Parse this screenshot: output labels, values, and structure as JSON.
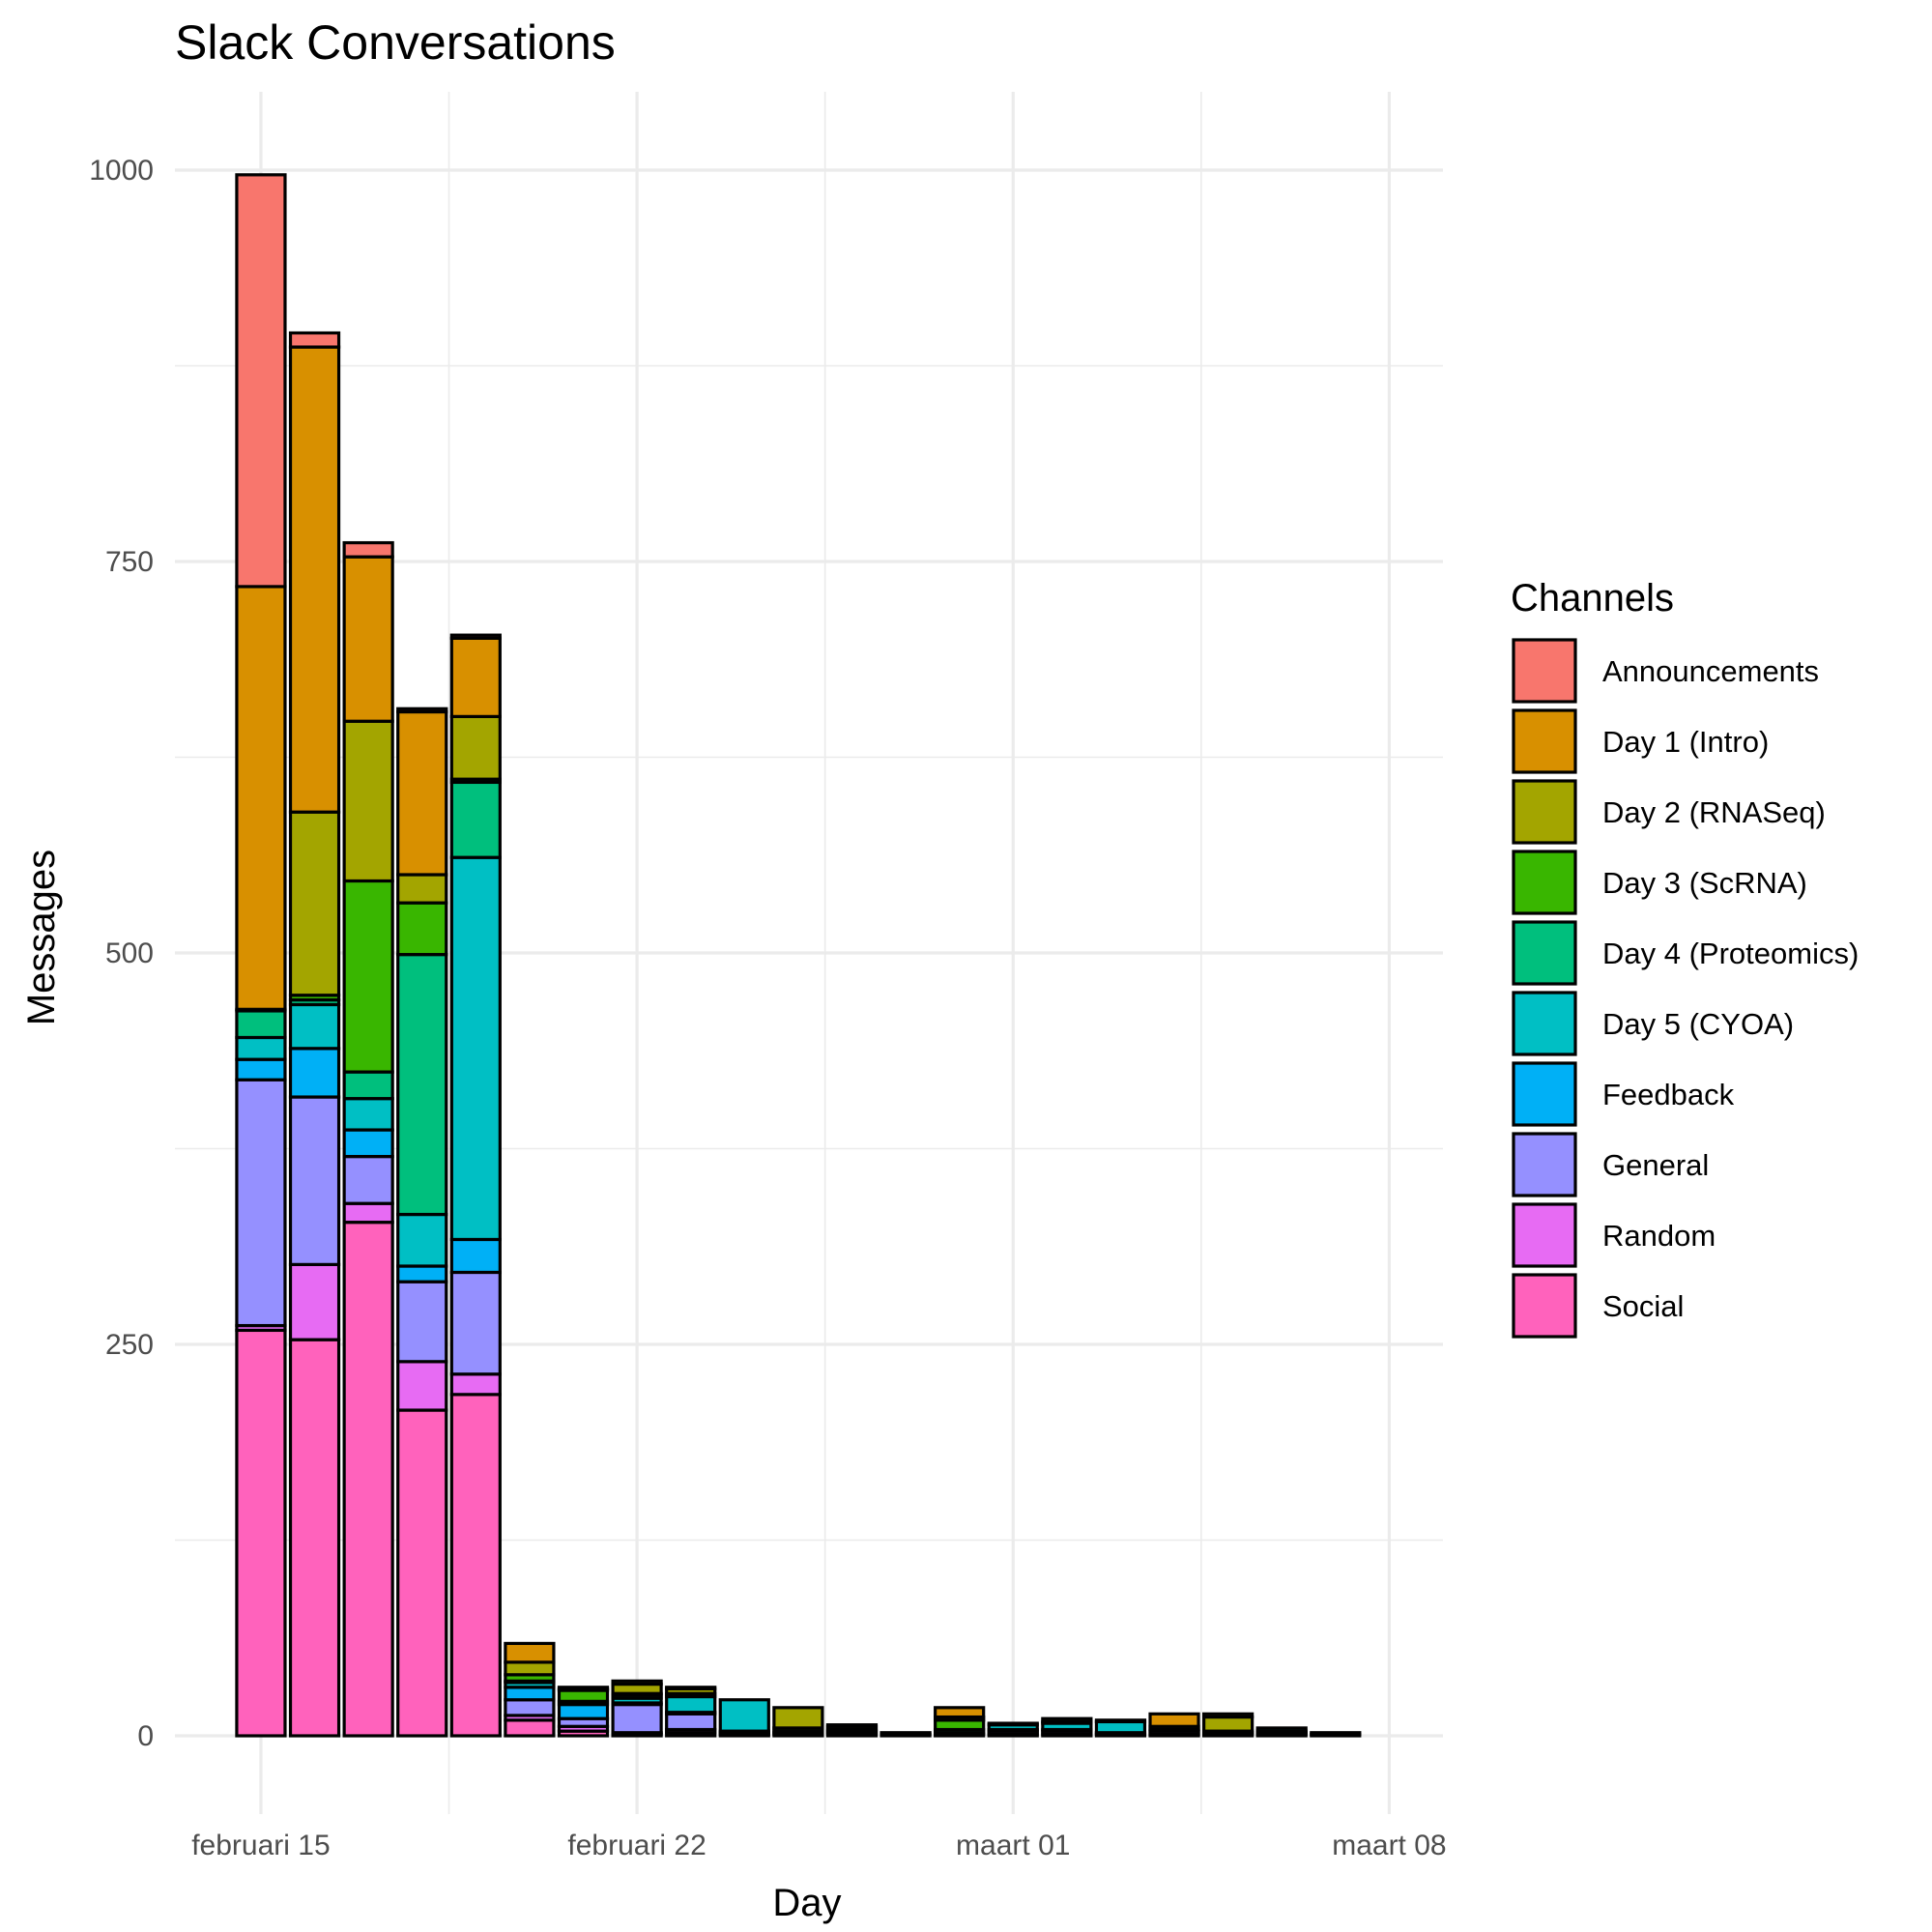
{
  "chart_data": {
    "type": "bar",
    "stacked": true,
    "title": "Slack Conversations",
    "xlabel": "Day",
    "ylabel": "Messages",
    "ylim": [
      -50,
      1050
    ],
    "yticks": [
      0,
      250,
      500,
      750,
      1000
    ],
    "ytick_labels": [
      "0",
      "250",
      "500",
      "750",
      "1000"
    ],
    "xlim": [
      -1.6,
      22.0
    ],
    "xticks": [
      0,
      7,
      14,
      21
    ],
    "xtick_labels": [
      "februari 15",
      "februari 22",
      "maart 01",
      "maart 08"
    ],
    "legend_title": "Channels",
    "legend_position": "right",
    "grid": true,
    "series": [
      {
        "name": "Social",
        "color": "#FF62BC"
      },
      {
        "name": "Random",
        "color": "#E76BF3"
      },
      {
        "name": "General",
        "color": "#9590FF"
      },
      {
        "name": "Feedback",
        "color": "#00B0F6"
      },
      {
        "name": "Day 5 (CYOA)",
        "color": "#00BFC4"
      },
      {
        "name": "Day 4 (Proteomics)",
        "color": "#00BF7D"
      },
      {
        "name": "Day 3 (ScRNA)",
        "color": "#39B600"
      },
      {
        "name": "Day 2 (RNASeq)",
        "color": "#A3A500"
      },
      {
        "name": "Day 1 (Intro)",
        "color": "#D89000"
      },
      {
        "name": "Announcements",
        "color": "#F8766D"
      }
    ],
    "legend_order": [
      "Announcements",
      "Day 1 (Intro)",
      "Day 2 (RNASeq)",
      "Day 3 (ScRNA)",
      "Day 4 (Proteomics)",
      "Day 5 (CYOA)",
      "Feedback",
      "General",
      "Random",
      "Social"
    ],
    "bars": [
      {
        "day": "februari 15",
        "x": 0,
        "stacks": [
          {
            "s": "Social",
            "v": 259
          },
          {
            "s": "Random",
            "v": 3
          },
          {
            "s": "General",
            "v": 157
          },
          {
            "s": "Feedback",
            "v": 13
          },
          {
            "s": "Day 5 (CYOA)",
            "v": 14
          },
          {
            "s": "Day 4 (Proteomics)",
            "v": 17
          },
          {
            "s": "Day 3 (ScRNA)",
            "v": 1
          },
          {
            "s": "Day 1 (Intro)",
            "v": 270
          },
          {
            "s": "Announcements",
            "v": 263
          }
        ]
      },
      {
        "day": "februari 16",
        "x": 1,
        "stacks": [
          {
            "s": "Social",
            "v": 253
          },
          {
            "s": "Random",
            "v": 48
          },
          {
            "s": "General",
            "v": 107
          },
          {
            "s": "Feedback",
            "v": 31
          },
          {
            "s": "Day 5 (CYOA)",
            "v": 28
          },
          {
            "s": "Day 4 (Proteomics)",
            "v": 3
          },
          {
            "s": "Day 3 (ScRNA)",
            "v": 3
          },
          {
            "s": "Day 2 (RNASeq)",
            "v": 117
          },
          {
            "s": "Day 1 (Intro)",
            "v": 297
          },
          {
            "s": "Announcements",
            "v": 9
          }
        ]
      },
      {
        "day": "februari 17",
        "x": 2,
        "stacks": [
          {
            "s": "Social",
            "v": 328
          },
          {
            "s": "Random",
            "v": 12
          },
          {
            "s": "General",
            "v": 30
          },
          {
            "s": "Feedback",
            "v": 17
          },
          {
            "s": "Day 5 (CYOA)",
            "v": 20
          },
          {
            "s": "Day 4 (Proteomics)",
            "v": 17
          },
          {
            "s": "Day 3 (ScRNA)",
            "v": 122
          },
          {
            "s": "Day 2 (RNASeq)",
            "v": 102
          },
          {
            "s": "Day 1 (Intro)",
            "v": 105
          },
          {
            "s": "Announcements",
            "v": 9
          }
        ]
      },
      {
        "day": "februari 18",
        "x": 3,
        "stacks": [
          {
            "s": "Social",
            "v": 208
          },
          {
            "s": "Random",
            "v": 31
          },
          {
            "s": "General",
            "v": 51
          },
          {
            "s": "Feedback",
            "v": 10
          },
          {
            "s": "Day 5 (CYOA)",
            "v": 33
          },
          {
            "s": "Day 4 (Proteomics)",
            "v": 166
          },
          {
            "s": "Day 3 (ScRNA)",
            "v": 33
          },
          {
            "s": "Day 2 (RNASeq)",
            "v": 18
          },
          {
            "s": "Day 1 (Intro)",
            "v": 104
          },
          {
            "s": "Announcements",
            "v": 2
          }
        ]
      },
      {
        "day": "februari 19",
        "x": 4,
        "stacks": [
          {
            "s": "Social",
            "v": 218
          },
          {
            "s": "Random",
            "v": 13
          },
          {
            "s": "General",
            "v": 65
          },
          {
            "s": "Feedback",
            "v": 21
          },
          {
            "s": "Day 5 (CYOA)",
            "v": 244
          },
          {
            "s": "Day 4 (Proteomics)",
            "v": 48
          },
          {
            "s": "Day 3 (ScRNA)",
            "v": 2
          },
          {
            "s": "Day 2 (RNASeq)",
            "v": 40
          },
          {
            "s": "Day 1 (Intro)",
            "v": 50
          },
          {
            "s": "Announcements",
            "v": 2
          }
        ]
      },
      {
        "day": "februari 20",
        "x": 5,
        "stacks": [
          {
            "s": "Social",
            "v": 10
          },
          {
            "s": "Random",
            "v": 3
          },
          {
            "s": "General",
            "v": 10
          },
          {
            "s": "Feedback",
            "v": 8
          },
          {
            "s": "Day 5 (CYOA)",
            "v": 3
          },
          {
            "s": "Day 4 (Proteomics)",
            "v": 1
          },
          {
            "s": "Day 3 (ScRNA)",
            "v": 4
          },
          {
            "s": "Day 2 (RNASeq)",
            "v": 8
          },
          {
            "s": "Day 1 (Intro)",
            "v": 12
          }
        ]
      },
      {
        "day": "februari 21",
        "x": 6,
        "stacks": [
          {
            "s": "Social",
            "v": 3
          },
          {
            "s": "Random",
            "v": 3
          },
          {
            "s": "General",
            "v": 5
          },
          {
            "s": "Feedback",
            "v": 9
          },
          {
            "s": "Day 5 (CYOA)",
            "v": 2
          },
          {
            "s": "Day 3 (ScRNA)",
            "v": 7
          },
          {
            "s": "Day 2 (RNASeq)",
            "v": 1
          },
          {
            "s": "Day 1 (Intro)",
            "v": 1
          }
        ]
      },
      {
        "day": "februari 22",
        "x": 7,
        "stacks": [
          {
            "s": "Social",
            "v": 1
          },
          {
            "s": "Random",
            "v": 1
          },
          {
            "s": "General",
            "v": 18
          },
          {
            "s": "Feedback",
            "v": 1
          },
          {
            "s": "Day 5 (CYOA)",
            "v": 3
          },
          {
            "s": "Day 4 (Proteomics)",
            "v": 2
          },
          {
            "s": "Day 3 (ScRNA)",
            "v": 1
          },
          {
            "s": "Day 2 (RNASeq)",
            "v": 6
          },
          {
            "s": "Day 1 (Intro)",
            "v": 2
          }
        ]
      },
      {
        "day": "februari 23",
        "x": 8,
        "stacks": [
          {
            "s": "Social",
            "v": 2
          },
          {
            "s": "Random",
            "v": 2
          },
          {
            "s": "General",
            "v": 10
          },
          {
            "s": "Feedback",
            "v": 1
          },
          {
            "s": "Day 5 (CYOA)",
            "v": 10
          },
          {
            "s": "Day 3 (ScRNA)",
            "v": 2
          },
          {
            "s": "Day 2 (RNASeq)",
            "v": 3
          },
          {
            "s": "Day 1 (Intro)",
            "v": 1
          }
        ]
      },
      {
        "day": "februari 24",
        "x": 9,
        "stacks": [
          {
            "s": "Social",
            "v": 1
          },
          {
            "s": "General",
            "v": 1
          },
          {
            "s": "Feedback",
            "v": 1
          },
          {
            "s": "Day 5 (CYOA)",
            "v": 20
          }
        ]
      },
      {
        "day": "februari 25",
        "x": 10,
        "stacks": [
          {
            "s": "Social",
            "v": 1
          },
          {
            "s": "General",
            "v": 1
          },
          {
            "s": "Day 4 (Proteomics)",
            "v": 1
          },
          {
            "s": "Day 3 (ScRNA)",
            "v": 2
          },
          {
            "s": "Day 2 (RNASeq)",
            "v": 13
          }
        ]
      },
      {
        "day": "februari 26",
        "x": 11,
        "stacks": [
          {
            "s": "Social",
            "v": 1
          },
          {
            "s": "General",
            "v": 1
          },
          {
            "s": "Feedback",
            "v": 1
          },
          {
            "s": "Day 5 (CYOA)",
            "v": 1
          },
          {
            "s": "Day 2 (RNASeq)",
            "v": 2
          },
          {
            "s": "Day 1 (Intro)",
            "v": 1
          }
        ]
      },
      {
        "day": "februari 27",
        "x": 12,
        "stacks": [
          {
            "s": "General",
            "v": 1
          },
          {
            "s": "Feedback",
            "v": 1
          }
        ]
      },
      {
        "day": "februari 28",
        "x": 13,
        "stacks": [
          {
            "s": "Social",
            "v": 1
          },
          {
            "s": "General",
            "v": 1
          },
          {
            "s": "Day 4 (Proteomics)",
            "v": 2
          },
          {
            "s": "Day 3 (ScRNA)",
            "v": 6
          },
          {
            "s": "Day 2 (RNASeq)",
            "v": 2
          },
          {
            "s": "Day 1 (Intro)",
            "v": 6
          }
        ]
      },
      {
        "day": "maart 01",
        "x": 14,
        "stacks": [
          {
            "s": "Social",
            "v": 1
          },
          {
            "s": "General",
            "v": 2
          },
          {
            "s": "Feedback",
            "v": 1
          },
          {
            "s": "Day 5 (CYOA)",
            "v": 3
          },
          {
            "s": "Day 2 (RNASeq)",
            "v": 1
          }
        ]
      },
      {
        "day": "maart 02",
        "x": 15,
        "stacks": [
          {
            "s": "Social",
            "v": 1
          },
          {
            "s": "General",
            "v": 2
          },
          {
            "s": "Feedback",
            "v": 1
          },
          {
            "s": "Day 5 (CYOA)",
            "v": 4
          },
          {
            "s": "Day 4 (Proteomics)",
            "v": 1
          },
          {
            "s": "Day 2 (RNASeq)",
            "v": 2
          }
        ]
      },
      {
        "day": "maart 03",
        "x": 16,
        "stacks": [
          {
            "s": "Social",
            "v": 1
          },
          {
            "s": "General",
            "v": 1
          },
          {
            "s": "Day 5 (CYOA)",
            "v": 7
          },
          {
            "s": "Day 2 (RNASeq)",
            "v": 1
          }
        ]
      },
      {
        "day": "maart 04",
        "x": 17,
        "stacks": [
          {
            "s": "Social",
            "v": 1
          },
          {
            "s": "General",
            "v": 2
          },
          {
            "s": "Feedback",
            "v": 1
          },
          {
            "s": "Day 2 (RNASeq)",
            "v": 2
          },
          {
            "s": "Day 1 (Intro)",
            "v": 8
          }
        ]
      },
      {
        "day": "maart 05",
        "x": 18,
        "stacks": [
          {
            "s": "Social",
            "v": 1
          },
          {
            "s": "General",
            "v": 1
          },
          {
            "s": "Day 3 (ScRNA)",
            "v": 1
          },
          {
            "s": "Day 2 (RNASeq)",
            "v": 9
          },
          {
            "s": "Day 1 (Intro)",
            "v": 2
          }
        ]
      },
      {
        "day": "maart 06",
        "x": 19,
        "stacks": [
          {
            "s": "Social",
            "v": 1
          },
          {
            "s": "General",
            "v": 1
          },
          {
            "s": "Feedback",
            "v": 1
          },
          {
            "s": "Day 5 (CYOA)",
            "v": 2
          }
        ]
      },
      {
        "day": "maart 07",
        "x": 20,
        "stacks": [
          {
            "s": "Social",
            "v": 1
          },
          {
            "s": "General",
            "v": 1
          }
        ]
      }
    ]
  }
}
